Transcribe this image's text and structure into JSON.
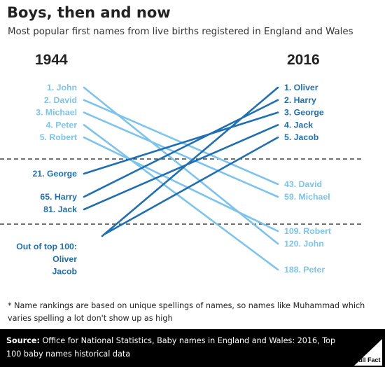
{
  "header": {
    "title": "Boys, then and now",
    "subtitle": "Most popular first names from live births registered in England and Wales"
  },
  "note": "* Name rankings are based on unique spellings of names, so names like Muhammad which varies spelling a lot don't show up as high",
  "footer": {
    "source_label": "Source:",
    "source_text": "Office for National Statistics, Baby names in England and Wales: 2016, Top 100 baby names historical data",
    "logo_text": "Full Fact"
  },
  "colors": {
    "light": "#7cc4ee",
    "dark": "#1f6fb2",
    "divider": "#222222",
    "text": "#222222"
  },
  "chart_data": {
    "type": "slope",
    "left_header": "1944",
    "right_header": "2016",
    "groups_left": [
      "top5",
      "top100",
      "out"
    ],
    "groups_right": [
      "top5",
      "top100",
      "out"
    ],
    "out_of_top_100_label": "Out of top 100:",
    "series": [
      {
        "name": "John",
        "rank_1944": 1,
        "rank_2016": 120,
        "left_label": "1. John",
        "right_label": "120. John",
        "color": "light"
      },
      {
        "name": "David",
        "rank_1944": 2,
        "rank_2016": 43,
        "left_label": "2. David",
        "right_label": "43. David",
        "color": "light"
      },
      {
        "name": "Michael",
        "rank_1944": 3,
        "rank_2016": 59,
        "left_label": "3. Michael",
        "right_label": "59. Michael",
        "color": "light"
      },
      {
        "name": "Peter",
        "rank_1944": 4,
        "rank_2016": 188,
        "left_label": "4. Peter",
        "right_label": "188. Peter",
        "color": "light"
      },
      {
        "name": "Robert",
        "rank_1944": 5,
        "rank_2016": 109,
        "left_label": "5. Robert",
        "right_label": "109. Robert",
        "color": "light"
      },
      {
        "name": "George",
        "rank_1944": 21,
        "rank_2016": 3,
        "left_label": "21. George",
        "right_label": "3. George",
        "color": "dark"
      },
      {
        "name": "Harry",
        "rank_1944": 65,
        "rank_2016": 2,
        "left_label": "65. Harry",
        "right_label": "2. Harry",
        "color": "dark"
      },
      {
        "name": "Jack",
        "rank_1944": 81,
        "rank_2016": 4,
        "left_label": "81. Jack",
        "right_label": "4. Jack",
        "color": "dark"
      },
      {
        "name": "Oliver",
        "rank_1944": null,
        "rank_2016": 1,
        "left_label": "Oliver",
        "right_label": "1. Oliver",
        "color": "dark"
      },
      {
        "name": "Jacob",
        "rank_1944": null,
        "rank_2016": 5,
        "left_label": "Jacob",
        "right_label": "5. Jacob",
        "color": "dark"
      }
    ]
  }
}
